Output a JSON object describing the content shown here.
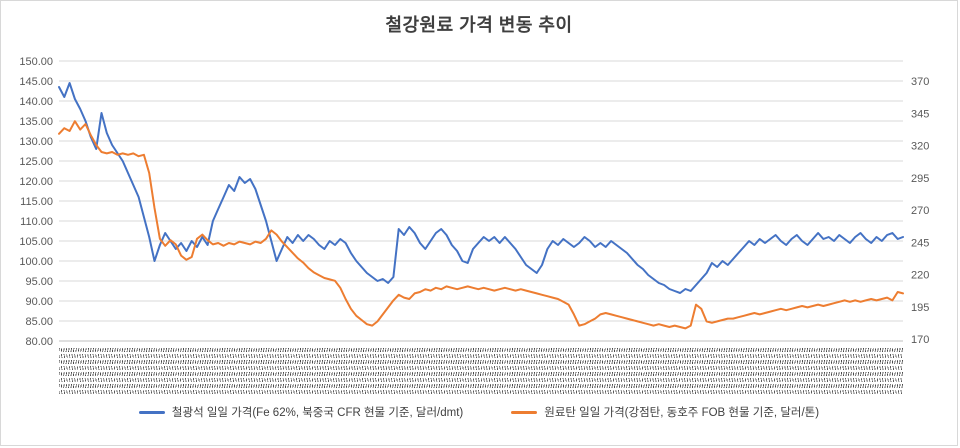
{
  "title": "철강원료 가격 변동 추이",
  "legend": [
    {
      "label": "철광석 일일 가격(Fe 62%, 북중국 CFR 현물 기준, 달러/dmt)",
      "color": "#4472C4"
    },
    {
      "label": "원료탄 일일 가격(강점탄, 동호주 FOB 현물 기준, 달러/톤)",
      "color": "#ED7D31"
    }
  ],
  "chart_data": {
    "type": "line",
    "title": "철강원료 가격 변동 추이",
    "grid": "horizontal",
    "legend_position": "bottom",
    "x_axis": {
      "labels_note": "daily date tick labels, rotated vertically, too dense to read at this scale"
    },
    "left_axis": {
      "min": 80,
      "max": 150,
      "step": 5,
      "tick_labels": [
        "150.00",
        "145.00",
        "140.00",
        "135.00",
        "130.00",
        "125.00",
        "120.00",
        "115.00",
        "110.00",
        "105.00",
        "100.00",
        "95.00",
        "90.00",
        "85.00",
        "80.00"
      ]
    },
    "right_axis": {
      "min": 170,
      "max": 370,
      "step": 25,
      "tick_labels": [
        "370",
        "345",
        "320",
        "295",
        "270",
        "245",
        "220",
        "195",
        "170"
      ]
    },
    "series": [
      {
        "key": "iron-ore",
        "name": "철광석 일일 가격(Fe 62%, 북중국 CFR 현물 기준, 달러/dmt)",
        "axis": "left",
        "color": "#4472C4",
        "values": [
          143.5,
          141.0,
          144.5,
          140.5,
          138.0,
          135.0,
          131.0,
          128.0,
          137.0,
          132.0,
          129.0,
          127.0,
          125.0,
          122.0,
          119.0,
          116.0,
          111.0,
          106.0,
          100.0,
          104.0,
          107.0,
          105.0,
          103.0,
          104.5,
          102.5,
          105.0,
          103.5,
          106.0,
          104.0,
          110.0,
          113.0,
          116.0,
          119.0,
          117.5,
          121.0,
          119.5,
          120.5,
          118.0,
          114.0,
          110.0,
          105.0,
          100.0,
          103.0,
          106.0,
          104.5,
          106.5,
          105.0,
          106.5,
          105.5,
          104.0,
          103.0,
          105.0,
          104.0,
          105.5,
          104.5,
          102.0,
          100.0,
          98.5,
          97.0,
          96.0,
          95.0,
          95.5,
          94.5,
          96.0,
          108.0,
          106.5,
          108.5,
          107.0,
          104.5,
          103.0,
          105.0,
          107.0,
          108.0,
          106.5,
          104.0,
          102.5,
          100.0,
          99.5,
          103.0,
          104.5,
          106.0,
          105.0,
          106.0,
          104.5,
          106.0,
          104.5,
          103.0,
          101.0,
          99.0,
          98.0,
          97.0,
          99.0,
          103.0,
          105.0,
          104.0,
          105.5,
          104.5,
          103.5,
          104.5,
          106.0,
          105.0,
          103.5,
          104.5,
          103.5,
          105.0,
          104.0,
          103.0,
          102.0,
          100.5,
          99.0,
          98.0,
          96.5,
          95.5,
          94.5,
          94.0,
          93.0,
          92.5,
          92.0,
          93.0,
          92.5,
          94.0,
          95.5,
          97.0,
          99.5,
          98.5,
          100.0,
          99.0,
          100.5,
          102.0,
          103.5,
          105.0,
          104.0,
          105.5,
          104.5,
          105.5,
          106.5,
          105.0,
          104.0,
          105.5,
          106.5,
          105.0,
          104.0,
          105.5,
          107.0,
          105.5,
          106.0,
          105.0,
          106.5,
          105.5,
          104.5,
          106.0,
          107.0,
          105.5,
          104.5,
          106.0,
          105.0,
          106.5,
          107.0,
          105.5,
          106.0
        ]
      },
      {
        "key": "coking-coal",
        "name": "원료탄 일일 가격(강점탄, 동호주 FOB 현물 기준, 달러/톤)",
        "axis": "right",
        "color": "#ED7D31",
        "values": [
          318,
          322,
          320,
          327,
          321,
          325,
          317,
          310,
          305,
          304,
          305,
          303,
          304,
          303,
          304,
          302,
          303,
          290,
          265,
          243,
          238,
          242,
          239,
          231,
          228,
          230,
          243,
          246,
          242,
          239,
          240,
          238,
          240,
          239,
          241,
          240,
          239,
          241,
          240,
          243,
          249,
          246,
          241,
          237,
          233,
          229,
          226,
          222,
          219,
          217,
          215,
          214,
          213,
          208,
          200,
          193,
          188,
          185,
          182,
          181,
          184,
          189,
          194,
          199,
          203,
          201,
          200,
          204,
          205,
          207,
          206,
          208,
          207,
          209,
          208,
          207,
          208,
          209,
          208,
          207,
          208,
          207,
          206,
          207,
          208,
          207,
          206,
          207,
          206,
          205,
          204,
          203,
          202,
          201,
          200,
          198,
          196,
          189,
          181,
          182,
          184,
          186,
          189,
          190,
          189,
          188,
          187,
          186,
          185,
          184,
          183,
          182,
          181,
          182,
          181,
          180,
          181,
          180,
          179,
          181,
          196,
          193,
          184,
          183,
          184,
          185,
          186,
          186,
          187,
          188,
          189,
          190,
          189,
          190,
          191,
          192,
          193,
          192,
          193,
          194,
          195,
          194,
          195,
          196,
          195,
          196,
          197,
          198,
          199,
          198,
          199,
          198,
          199,
          200,
          199,
          200,
          201,
          199,
          205,
          204
        ]
      }
    ]
  }
}
